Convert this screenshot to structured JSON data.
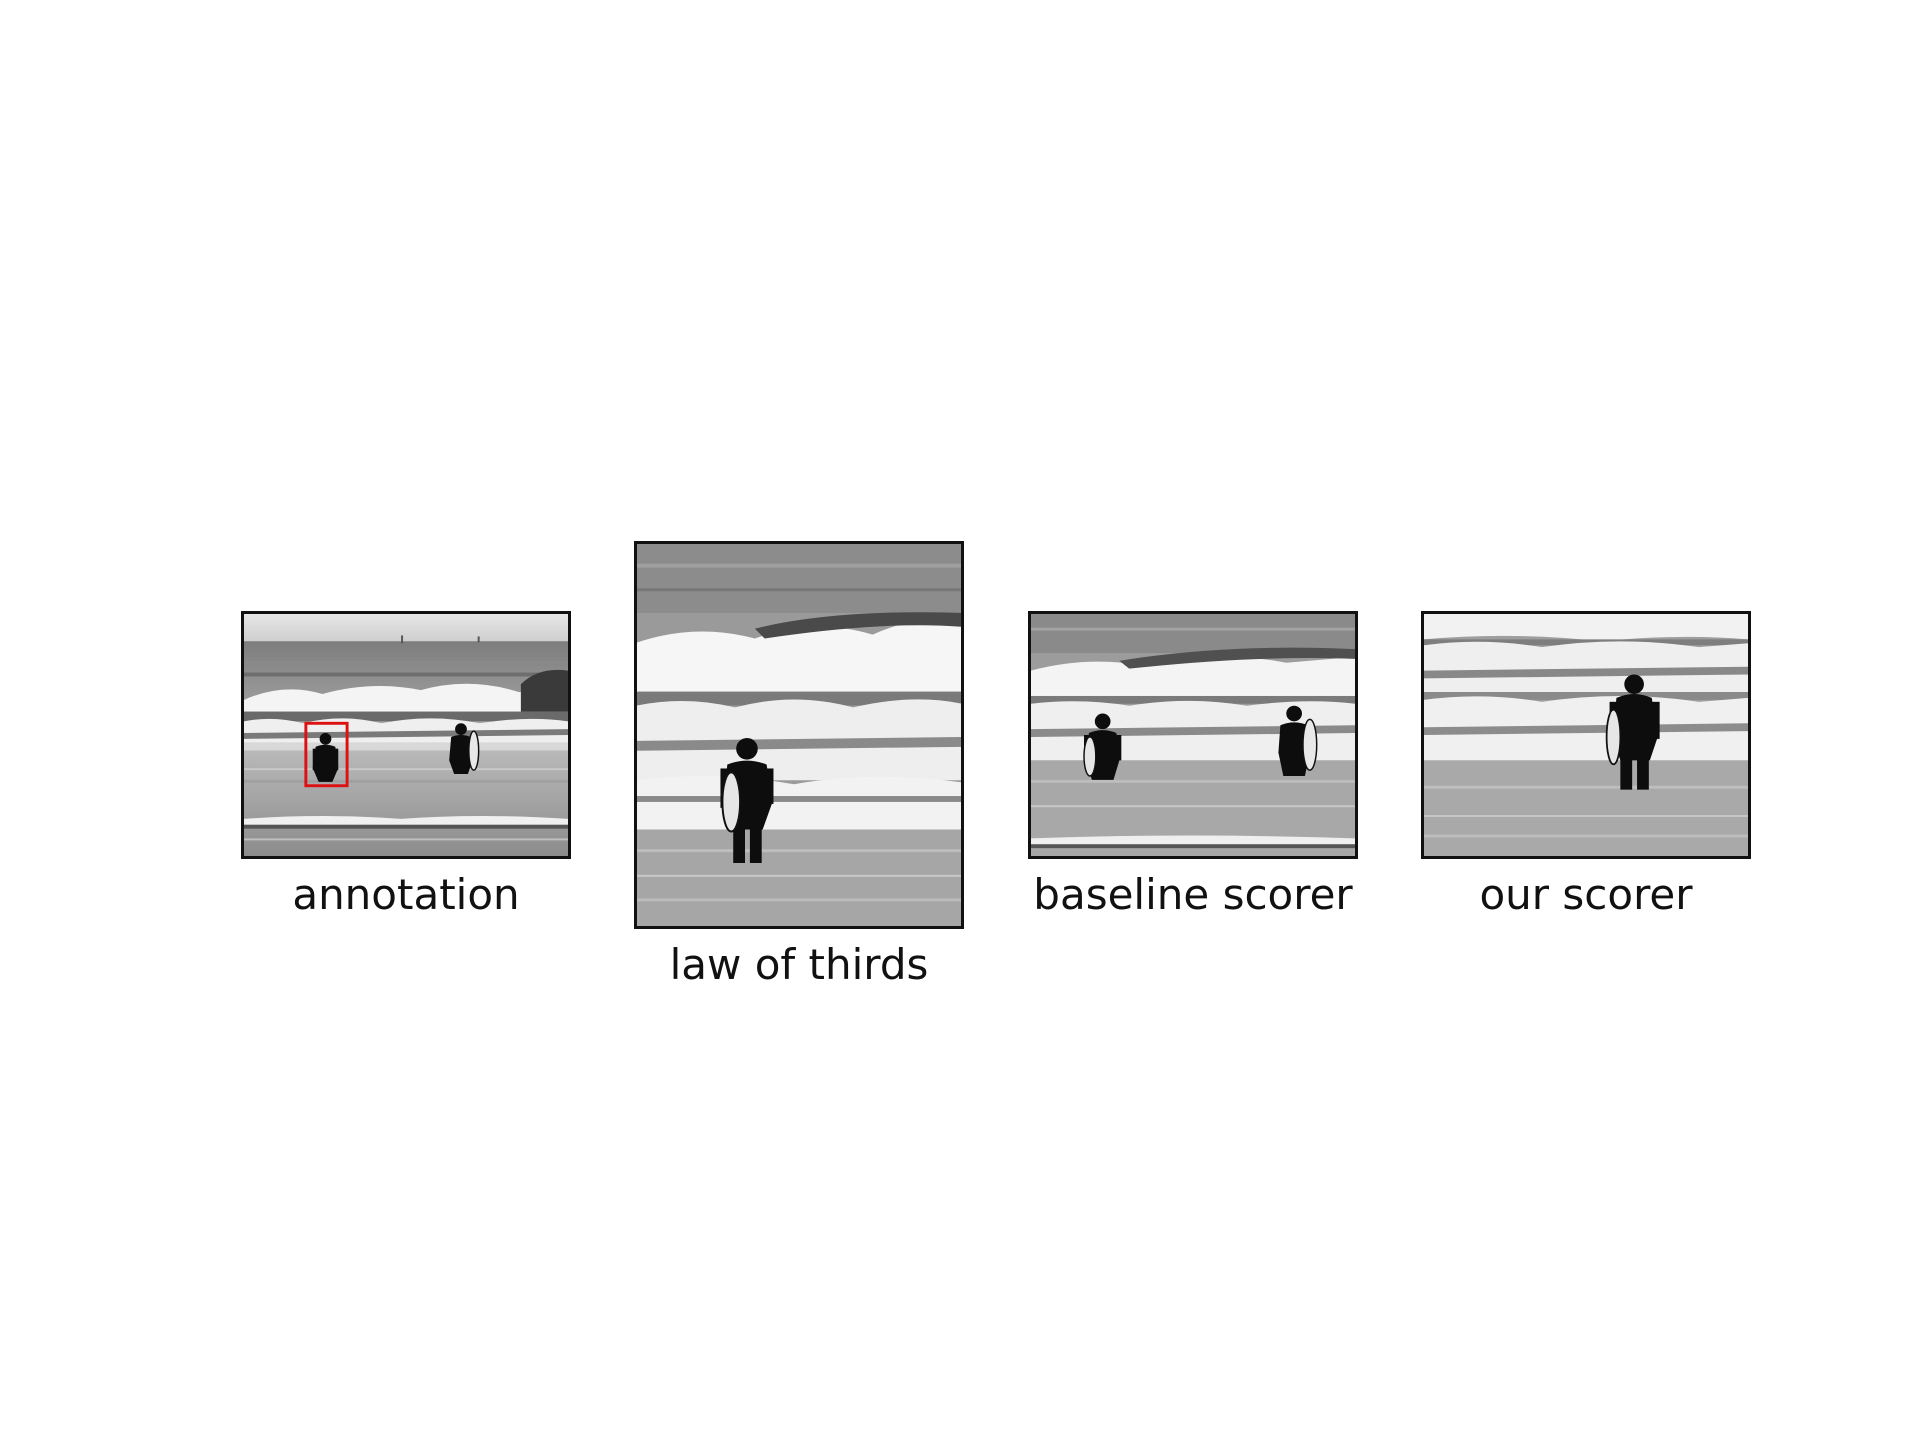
{
  "figure": {
    "panels": [
      {
        "id": "annotation",
        "caption": "annotation",
        "has_annotation_box": true
      },
      {
        "id": "law-of-thirds",
        "caption": "law of thirds",
        "has_annotation_box": false
      },
      {
        "id": "baseline-scorer",
        "caption": "baseline scorer",
        "has_annotation_box": false
      },
      {
        "id": "our-scorer",
        "caption": "our scorer",
        "has_annotation_box": false
      }
    ],
    "colors": {
      "frame": "#111111",
      "annotation_box": "#dd1111",
      "background": "#ffffff"
    }
  }
}
